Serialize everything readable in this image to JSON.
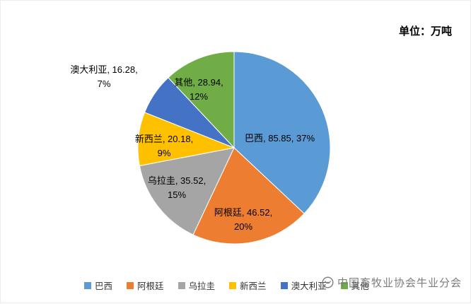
{
  "unit_label": "单位：万吨",
  "watermark": {
    "text": "中国畜牧业协会牛业分会"
  },
  "chart_data": {
    "type": "pie",
    "title": "",
    "unit": "万吨",
    "categories": [
      "巴西",
      "阿根廷",
      "乌拉圭",
      "新西兰",
      "澳大利亚",
      "其他"
    ],
    "values": [
      85.85,
      46.52,
      35.52,
      20.18,
      16.28,
      28.94
    ],
    "percents": [
      37,
      20,
      15,
      9,
      7,
      12
    ],
    "colors": [
      "#5B9BD5",
      "#ED7D31",
      "#A5A5A5",
      "#FFC000",
      "#4472C4",
      "#70AD47"
    ],
    "start_angle_deg": 0,
    "direction": "clockwise",
    "legend_position": "bottom",
    "slice_labels": [
      {
        "text": "巴西, 85.85, 37%"
      },
      {
        "text": "阿根廷, 46.52,\n20%"
      },
      {
        "text": "乌拉圭, 35.52,\n15%"
      },
      {
        "text": "新西兰, 20.18,\n9%"
      },
      {
        "text": "澳大利亚, 16.28,\n7%"
      },
      {
        "text": "其他, 28.94,\n12%"
      }
    ]
  }
}
